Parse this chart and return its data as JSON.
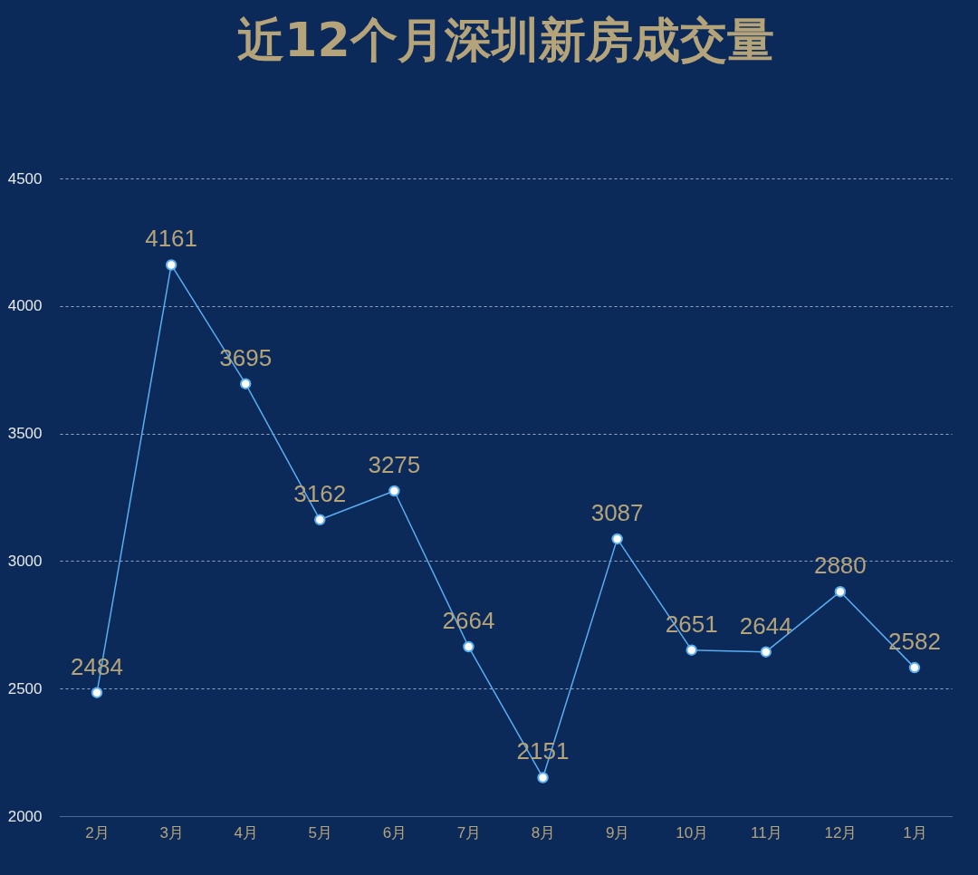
{
  "chart_data": {
    "type": "line",
    "title": "近12个月深圳新房成交量",
    "categories": [
      "2月",
      "3月",
      "4月",
      "5月",
      "6月",
      "7月",
      "8月",
      "9月",
      "10月",
      "11月",
      "12月",
      "1月"
    ],
    "series": [
      {
        "color": "#5aaef0",
        "values": [
          2484,
          4161,
          3695,
          3162,
          3275,
          2664,
          2151,
          3087,
          2651,
          2644,
          2880,
          2582
        ]
      }
    ],
    "ylim": [
      2000,
      4500
    ],
    "yticks": [
      2000,
      2500,
      3000,
      3500,
      4000,
      4500
    ],
    "grid": "y",
    "marker": "circle",
    "line_style": "solid",
    "data_labels": true,
    "legend": false
  }
}
